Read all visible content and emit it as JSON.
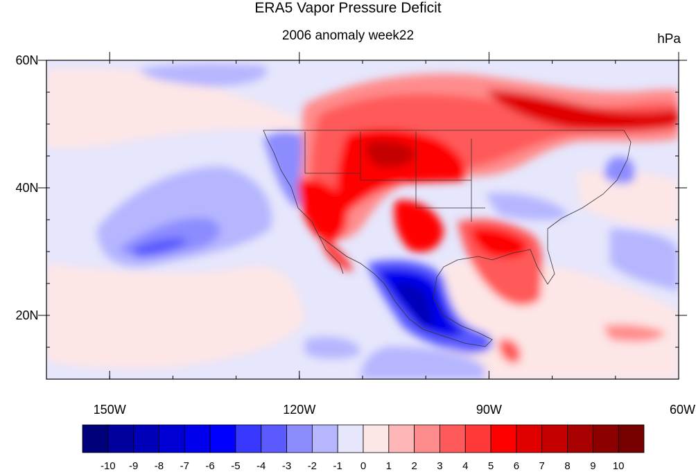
{
  "title": "ERA5 Vapor Pressure Deficit",
  "subtitle": "2006 anomaly week22",
  "units": "hPa",
  "map": {
    "lon_range": [
      -160,
      -60
    ],
    "lat_range": [
      10,
      60
    ],
    "lon_ticks": [
      {
        "value": -150,
        "label": "150W"
      },
      {
        "value": -120,
        "label": "120W"
      },
      {
        "value": -90,
        "label": "90W"
      },
      {
        "value": -60,
        "label": "60W"
      }
    ],
    "lat_ticks": [
      {
        "value": 60,
        "label": "60N"
      },
      {
        "value": 40,
        "label": "40N"
      },
      {
        "value": 20,
        "label": "20N"
      }
    ]
  },
  "colorbar": {
    "labels": [
      "-10",
      "-9",
      "-8",
      "-7",
      "-6",
      "-5",
      "-4",
      "-3",
      "-2",
      "-1",
      "0",
      "1",
      "2",
      "3",
      "4",
      "5",
      "6",
      "7",
      "8",
      "9",
      "10"
    ],
    "colors": [
      "#00007a",
      "#00009e",
      "#0000b8",
      "#0000d4",
      "#0000ec",
      "#0000ff",
      "#3838ff",
      "#5a5aff",
      "#8c8cff",
      "#b6b6ff",
      "#e6e6fc",
      "#fde6e6",
      "#ffb6b6",
      "#ff8c8c",
      "#ff5a5a",
      "#ff3838",
      "#ff0000",
      "#e00000",
      "#c40000",
      "#a80000",
      "#8c0000",
      "#760000"
    ]
  }
}
